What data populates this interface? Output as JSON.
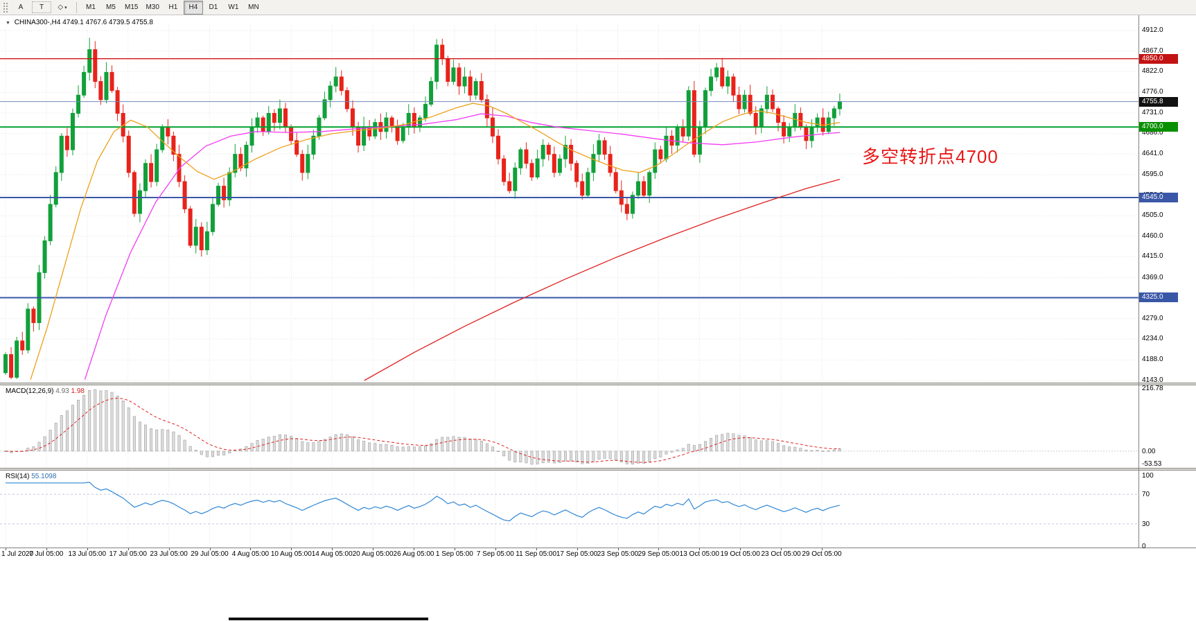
{
  "toolbar": {
    "button_a": "A",
    "button_t": "T",
    "objects_icon": "◇",
    "dropdown_icon": "▾",
    "timeframes": [
      "M1",
      "M5",
      "M15",
      "M30",
      "H1",
      "H4",
      "D1",
      "W1",
      "MN"
    ],
    "active_timeframe": "H4"
  },
  "chart": {
    "collapse_icon": "▼",
    "symbol_title": "CHINA300-,H4",
    "ohlc_text": "4749.1 4767.6 4739.5 4755.8",
    "annotation": {
      "text": "多空转折点4700",
      "color": "#e81717"
    },
    "price_axis_ticks": [
      "4912.0",
      "4867.0",
      "4822.0",
      "4776.0",
      "4731.0",
      "4686.0",
      "4641.0",
      "4595.0",
      "4550.0",
      "4505.0",
      "4460.0",
      "4415.0",
      "4369.0",
      "4324.0",
      "4279.0",
      "4234.0",
      "4188.0",
      "4143.0"
    ],
    "price_badges": [
      {
        "label": "4850.0",
        "bg": "#c31212"
      },
      {
        "label": "4755.8",
        "bg": "#111111"
      },
      {
        "label": "4700.0",
        "bg": "#089000"
      },
      {
        "label": "4545.0",
        "bg": "#3a57a7"
      },
      {
        "label": "4325.0",
        "bg": "#3a57a7"
      }
    ],
    "time_axis_labels": [
      "1 Jul 2020",
      "7 Jul 05:00",
      "13 Jul 05:00",
      "17 Jul 05:00",
      "23 Jul 05:00",
      "29 Jul 05:00",
      "4 Aug 05:00",
      "10 Aug 05:00",
      "14 Aug 05:00",
      "20 Aug 05:00",
      "26 Aug 05:00",
      "1 Sep 05:00",
      "7 Sep 05:00",
      "11 Sep 05:00",
      "17 Sep 05:00",
      "23 Sep 05:00",
      "29 Sep 05:00",
      "13 Oct 05:00",
      "19 Oct 05:00",
      "23 Oct 05:00",
      "29 Oct 05:00"
    ]
  },
  "chart_data": {
    "type": "candlestick",
    "symbol": "CHINA300-",
    "timeframe": "H4",
    "ohlc_readout": {
      "open": 4749.1,
      "high": 4767.6,
      "low": 4739.5,
      "close": 4755.8
    },
    "price_range": [
      4143.0,
      4912.0
    ],
    "up_color": "#11a03a",
    "down_color": "#e8231a",
    "closes": [
      4200,
      4150,
      4230,
      4210,
      4300,
      4270,
      4380,
      4450,
      4530,
      4600,
      4680,
      4650,
      4730,
      4770,
      4820,
      4870,
      4800,
      4760,
      4820,
      4780,
      4730,
      4680,
      4600,
      4510,
      4560,
      4620,
      4580,
      4650,
      4700,
      4680,
      4640,
      4580,
      4520,
      4440,
      4480,
      4430,
      4470,
      4530,
      4570,
      4540,
      4600,
      4640,
      4610,
      4660,
      4700,
      4720,
      4690,
      4730,
      4710,
      4740,
      4700,
      4670,
      4640,
      4600,
      4640,
      4680,
      4720,
      4760,
      4790,
      4810,
      4780,
      4740,
      4700,
      4660,
      4700,
      4680,
      4710,
      4690,
      4720,
      4700,
      4670,
      4700,
      4730,
      4700,
      4720,
      4750,
      4800,
      4880,
      4850,
      4800,
      4830,
      4790,
      4810,
      4770,
      4800,
      4760,
      4720,
      4680,
      4630,
      4580,
      4560,
      4610,
      4650,
      4620,
      4590,
      4630,
      4660,
      4640,
      4600,
      4630,
      4660,
      4620,
      4580,
      4550,
      4600,
      4640,
      4670,
      4640,
      4600,
      4560,
      4530,
      4510,
      4550,
      4580,
      4550,
      4600,
      4650,
      4630,
      4680,
      4660,
      4700,
      4680,
      4780,
      4640,
      4700,
      4780,
      4810,
      4830,
      4790,
      4810,
      4770,
      4740,
      4770,
      4730,
      4700,
      4740,
      4770,
      4740,
      4710,
      4680,
      4700,
      4730,
      4700,
      4670,
      4700,
      4720,
      4690,
      4720,
      4740,
      4755.8
    ],
    "horizontal_levels": [
      {
        "price": 4850,
        "color": "#d01010",
        "width": 1.4
      },
      {
        "price": 4755.8,
        "color": "#7289b6",
        "width": 1
      },
      {
        "price": 4700,
        "color": "#00a12b",
        "width": 2
      },
      {
        "price": 4545,
        "color": "#3a57a7",
        "width": 2
      },
      {
        "price": 4325,
        "color": "#3a57a7",
        "width": 2
      }
    ],
    "moving_averages": [
      {
        "name": "ma-slow-red",
        "color": "#e02020",
        "points": [
          [
            0.43,
            4143
          ],
          [
            0.49,
            4205
          ],
          [
            0.55,
            4262
          ],
          [
            0.61,
            4315
          ],
          [
            0.67,
            4365
          ],
          [
            0.73,
            4412
          ],
          [
            0.79,
            4456
          ],
          [
            0.85,
            4497
          ],
          [
            0.91,
            4535
          ],
          [
            0.96,
            4565
          ],
          [
            1.0,
            4585
          ]
        ]
      },
      {
        "name": "ma-mid-magenta",
        "color": "#f23cf2",
        "points": [
          [
            0.095,
            4145
          ],
          [
            0.12,
            4285
          ],
          [
            0.15,
            4425
          ],
          [
            0.18,
            4535
          ],
          [
            0.21,
            4612
          ],
          [
            0.24,
            4658
          ],
          [
            0.27,
            4680
          ],
          [
            0.3,
            4690
          ],
          [
            0.34,
            4688
          ],
          [
            0.38,
            4690
          ],
          [
            0.42,
            4696
          ],
          [
            0.46,
            4701
          ],
          [
            0.5,
            4706
          ],
          [
            0.54,
            4716
          ],
          [
            0.57,
            4729
          ],
          [
            0.6,
            4724
          ],
          [
            0.63,
            4710
          ],
          [
            0.66,
            4700
          ],
          [
            0.7,
            4692
          ],
          [
            0.74,
            4684
          ],
          [
            0.78,
            4674
          ],
          [
            0.82,
            4665
          ],
          [
            0.86,
            4661
          ],
          [
            0.9,
            4667
          ],
          [
            0.94,
            4677
          ],
          [
            0.98,
            4685
          ],
          [
            1.0,
            4688
          ]
        ]
      },
      {
        "name": "ma-fast-orange",
        "color": "#eca019",
        "points": [
          [
            0.03,
            4145
          ],
          [
            0.05,
            4260
          ],
          [
            0.07,
            4390
          ],
          [
            0.09,
            4520
          ],
          [
            0.11,
            4625
          ],
          [
            0.13,
            4690
          ],
          [
            0.15,
            4715
          ],
          [
            0.17,
            4700
          ],
          [
            0.19,
            4665
          ],
          [
            0.21,
            4632
          ],
          [
            0.23,
            4602
          ],
          [
            0.25,
            4585
          ],
          [
            0.27,
            4600
          ],
          [
            0.3,
            4630
          ],
          [
            0.33,
            4655
          ],
          [
            0.36,
            4672
          ],
          [
            0.39,
            4685
          ],
          [
            0.42,
            4692
          ],
          [
            0.45,
            4697
          ],
          [
            0.48,
            4706
          ],
          [
            0.51,
            4722
          ],
          [
            0.54,
            4742
          ],
          [
            0.56,
            4752
          ],
          [
            0.58,
            4746
          ],
          [
            0.6,
            4730
          ],
          [
            0.62,
            4710
          ],
          [
            0.64,
            4690
          ],
          [
            0.66,
            4668
          ],
          [
            0.68,
            4648
          ],
          [
            0.7,
            4632
          ],
          [
            0.72,
            4618
          ],
          [
            0.74,
            4605
          ],
          [
            0.76,
            4600
          ],
          [
            0.78,
            4615
          ],
          [
            0.8,
            4640
          ],
          [
            0.82,
            4666
          ],
          [
            0.84,
            4690
          ],
          [
            0.86,
            4712
          ],
          [
            0.88,
            4726
          ],
          [
            0.9,
            4736
          ],
          [
            0.92,
            4730
          ],
          [
            0.94,
            4720
          ],
          [
            0.96,
            4710
          ],
          [
            0.98,
            4704
          ],
          [
            1.0,
            4710
          ]
        ]
      }
    ],
    "macd": {
      "label": "MACD(12,26,9)",
      "value_main": "4.93",
      "value_signal": "1.98",
      "axis_labels": [
        "216.78",
        "0.00",
        "-53.53"
      ],
      "fast": 12,
      "slow": 26,
      "signal": 9
    },
    "rsi": {
      "label": "RSI(14)",
      "value": "55.1098",
      "period": 14,
      "levels": [
        70,
        30
      ],
      "axis_labels": [
        "100",
        "70",
        "30",
        "0"
      ]
    }
  }
}
